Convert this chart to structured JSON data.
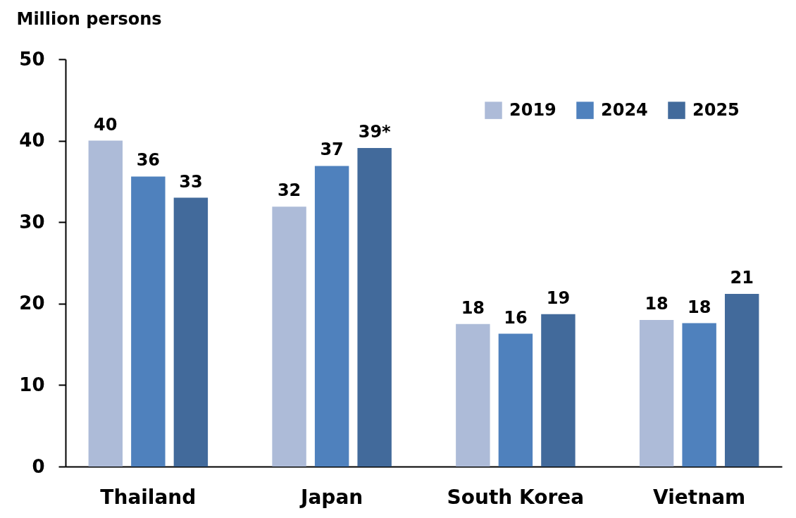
{
  "chart_data": {
    "type": "bar",
    "ylabel": "Million persons",
    "categories": [
      "Thailand",
      "Japan",
      "South Korea",
      "Vietnam"
    ],
    "series": [
      {
        "name": "2019",
        "color": "#adbbd8",
        "values": [
          40.0,
          31.9,
          17.5,
          18.0
        ],
        "value_labels": [
          "40",
          "32",
          "18",
          "18"
        ]
      },
      {
        "name": "2024",
        "color": "#4f81bd",
        "values": [
          35.6,
          36.9,
          16.3,
          17.6
        ],
        "value_labels": [
          "36",
          "37",
          "16",
          "18"
        ]
      },
      {
        "name": "2025",
        "color": "#426a9b",
        "values": [
          33.0,
          39.1,
          18.7,
          21.2
        ],
        "value_labels": [
          "33",
          "39*",
          "19",
          "21"
        ]
      }
    ],
    "ylim": [
      0,
      50
    ],
    "yticks": [
      0,
      10,
      20,
      30,
      40,
      50
    ],
    "grid": false,
    "legend": "top right"
  }
}
